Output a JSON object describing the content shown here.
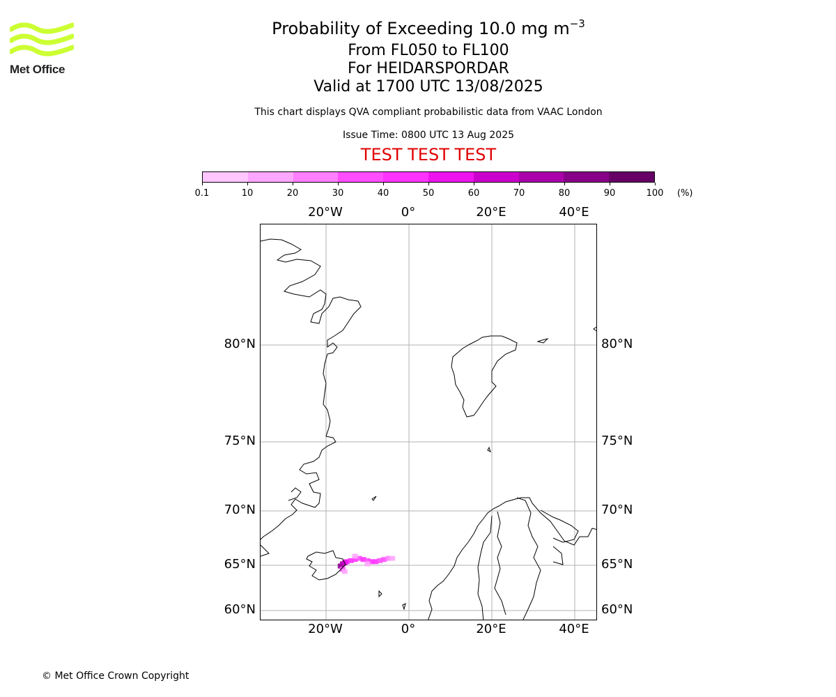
{
  "logo": {
    "text": "Met Office",
    "color": "#ccff33"
  },
  "titles": {
    "main_prefix": "Probability of Exceeding 10.0 mg m",
    "main_exponent": "−3",
    "level_range": "From FL050 to FL100",
    "volcano": "For HEIDARSPORDAR",
    "valid_time": "Valid at 1700 UTC 13/08/2025",
    "note": "This chart displays QVA compliant probabilistic data from VAAC London",
    "issue_time": "Issue Time: 0800 UTC 13 Aug 2025",
    "test_banner": "TEST TEST TEST"
  },
  "colorbar": {
    "labels": [
      "0.1",
      "10",
      "20",
      "30",
      "40",
      "50",
      "60",
      "70",
      "80",
      "90",
      "100"
    ],
    "colors": [
      "#ffe6ff",
      "#ffc6ff",
      "#ffa6ff",
      "#ff7fff",
      "#ff4dff",
      "#ff33ff",
      "#ee14ee",
      "#cc00cc",
      "#aa00aa",
      "#880088",
      "#660066"
    ],
    "unit": "(%)"
  },
  "map": {
    "lon_labels": [
      "20°W",
      "0°",
      "20°E",
      "40°E"
    ],
    "lat_labels": [
      "80°N",
      "75°N",
      "70°N",
      "65°N",
      "60°N"
    ],
    "gridline_color": "#b0b0b0",
    "coast_color": "#000000",
    "plume": [
      {
        "lon": -16.5,
        "lat": 64.9,
        "value": 85
      },
      {
        "lon": -16.0,
        "lat": 65.1,
        "value": 75
      },
      {
        "lon": -15.5,
        "lat": 65.2,
        "value": 65
      },
      {
        "lon": -15.0,
        "lat": 65.3,
        "value": 55
      },
      {
        "lon": -14.0,
        "lat": 65.4,
        "value": 45
      },
      {
        "lon": -13.0,
        "lat": 65.5,
        "value": 40
      },
      {
        "lon": -12.0,
        "lat": 65.6,
        "value": 35
      },
      {
        "lon": -11.0,
        "lat": 65.5,
        "value": 40
      },
      {
        "lon": -10.0,
        "lat": 65.4,
        "value": 35
      },
      {
        "lon": -9.0,
        "lat": 65.3,
        "value": 45
      },
      {
        "lon": -8.0,
        "lat": 65.3,
        "value": 40
      },
      {
        "lon": -7.0,
        "lat": 65.4,
        "value": 35
      },
      {
        "lon": -6.0,
        "lat": 65.5,
        "value": 30
      },
      {
        "lon": -5.0,
        "lat": 65.6,
        "value": 20
      },
      {
        "lon": -4.0,
        "lat": 65.6,
        "value": 10
      },
      {
        "lon": -16.0,
        "lat": 64.6,
        "value": 30
      },
      {
        "lon": -15.5,
        "lat": 64.4,
        "value": 15
      },
      {
        "lon": -13.0,
        "lat": 65.8,
        "value": 15
      },
      {
        "lon": -10.0,
        "lat": 65.1,
        "value": 15
      }
    ]
  },
  "footer": {
    "copyright": "© Met Office Crown Copyright"
  }
}
